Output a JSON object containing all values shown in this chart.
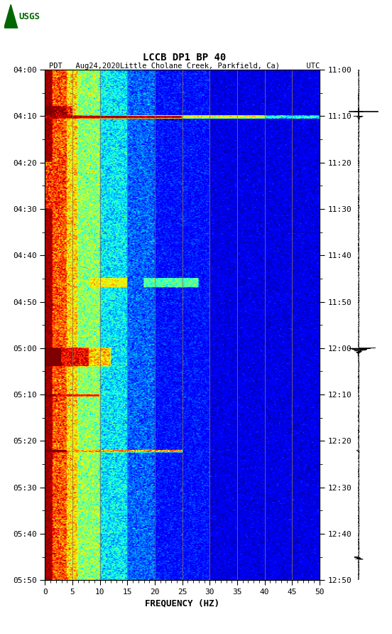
{
  "title_line1": "LCCB DP1 BP 40",
  "title_line2": "PDT   Aug24,2020Little Cholane Creek, Parkfield, Ca)      UTC",
  "xlabel": "FREQUENCY (HZ)",
  "freq_min": 0,
  "freq_max": 50,
  "left_time_ticks": [
    "04:00",
    "04:10",
    "04:20",
    "04:30",
    "04:40",
    "04:50",
    "05:00",
    "05:10",
    "05:20",
    "05:30",
    "05:40",
    "05:50"
  ],
  "right_time_ticks": [
    "11:00",
    "11:10",
    "11:20",
    "11:30",
    "11:40",
    "11:50",
    "12:00",
    "12:10",
    "12:20",
    "12:30",
    "12:40",
    "12:50"
  ],
  "freq_ticks": [
    0,
    5,
    10,
    15,
    20,
    25,
    30,
    35,
    40,
    45,
    50
  ],
  "bg_color": "#ffffff",
  "vertical_lines_freq": [
    5,
    10,
    15,
    20,
    25,
    30,
    35,
    40,
    45
  ],
  "n_time_bins": 660,
  "n_freq_bins": 250
}
